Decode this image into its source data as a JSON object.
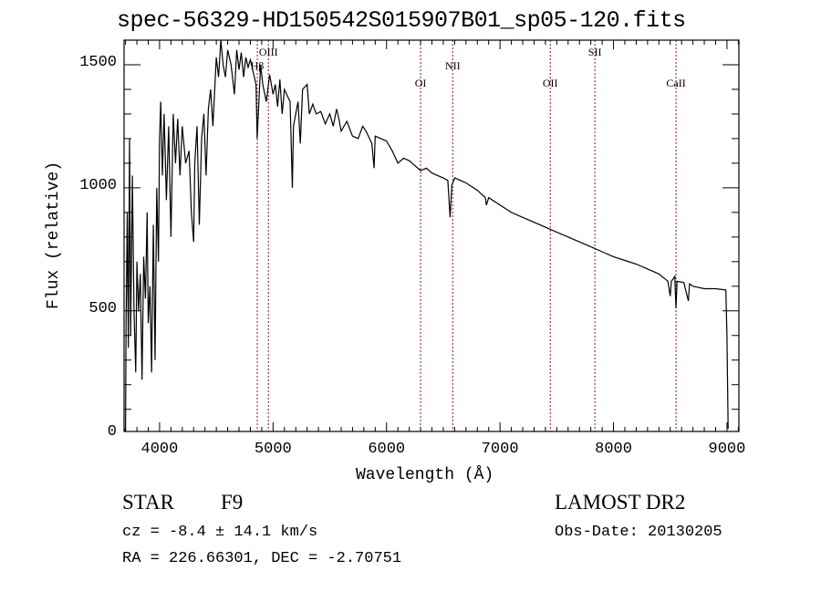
{
  "chart_data": {
    "type": "line",
    "title": "spec-56329-HD150542S015907B01_sp05-120.fits",
    "xlabel": "Wavelength (Å)",
    "ylabel": "Flux (relative)",
    "xlim": [
      3687,
      9105
    ],
    "ylim": [
      10,
      1600
    ],
    "x_ticks": [
      4000,
      5000,
      6000,
      7000,
      8000,
      9000
    ],
    "x_tick_labels": [
      "4000",
      "5000",
      "6000",
      "7000",
      "8000",
      "9000"
    ],
    "y_ticks": [
      0,
      500,
      1000,
      1500
    ],
    "y_tick_labels": [
      "0",
      "500",
      "1000",
      "1500"
    ],
    "grid": false,
    "line_color": "#000000",
    "marker_color": "#8b1a1a",
    "spectral_lines": [
      {
        "label": "Hβ",
        "wavelength": 4861,
        "level": 2
      },
      {
        "label": "OIII",
        "wavelength": 4959,
        "level": 1
      },
      {
        "label": "OI",
        "wavelength": 6300,
        "level": 3
      },
      {
        "label": "NII",
        "wavelength": 6583,
        "level": 2
      },
      {
        "label": "OII",
        "wavelength": 7443,
        "level": 3
      },
      {
        "label": "SII",
        "wavelength": 7836,
        "level": 1
      },
      {
        "label": "CaII",
        "wavelength": 8551,
        "level": 3
      }
    ],
    "series": [
      {
        "name": "spectrum",
        "x": [
          3690,
          3700,
          3705,
          3715,
          3725,
          3735,
          3745,
          3760,
          3775,
          3790,
          3800,
          3815,
          3830,
          3845,
          3860,
          3875,
          3890,
          3900,
          3915,
          3930,
          3945,
          3960,
          3975,
          3990,
          4000,
          4010,
          4025,
          4040,
          4060,
          4080,
          4100,
          4120,
          4140,
          4160,
          4180,
          4200,
          4230,
          4260,
          4280,
          4300,
          4310,
          4330,
          4350,
          4370,
          4390,
          4410,
          4430,
          4450,
          4470,
          4500,
          4520,
          4540,
          4560,
          4580,
          4600,
          4630,
          4660,
          4680,
          4700,
          4720,
          4740,
          4760,
          4780,
          4800,
          4830,
          4850,
          4860,
          4870,
          4890,
          4910,
          4940,
          4970,
          5000,
          5020,
          5040,
          5060,
          5080,
          5100,
          5150,
          5170,
          5180,
          5200,
          5220,
          5240,
          5260,
          5300,
          5320,
          5350,
          5380,
          5420,
          5460,
          5500,
          5530,
          5560,
          5580,
          5600,
          5650,
          5700,
          5750,
          5790,
          5820,
          5870,
          5890,
          5900,
          5950,
          6000,
          6050,
          6100,
          6150,
          6200,
          6250,
          6300,
          6350,
          6400,
          6450,
          6500,
          6540,
          6560,
          6575,
          6600,
          6700,
          6800,
          6870,
          6880,
          6900,
          7000,
          7100,
          7200,
          7300,
          7400,
          7500,
          7600,
          7700,
          7800,
          7900,
          8000,
          8100,
          8200,
          8300,
          8400,
          8480,
          8500,
          8510,
          8540,
          8550,
          8560,
          8620,
          8660,
          8670,
          8700,
          8800,
          8900,
          8990,
          9000,
          9010
        ],
        "y": [
          20,
          0,
          450,
          900,
          350,
          1200,
          400,
          1050,
          500,
          250,
          700,
          500,
          650,
          220,
          720,
          550,
          900,
          450,
          600,
          250,
          850,
          300,
          1000,
          700,
          1200,
          1350,
          1050,
          1300,
          950,
          1250,
          800,
          1300,
          1100,
          1280,
          1050,
          1250,
          1100,
          1150,
          900,
          780,
          1100,
          1250,
          850,
          1200,
          1300,
          1050,
          1320,
          1400,
          1250,
          1530,
          1450,
          1600,
          1500,
          1450,
          1560,
          1500,
          1380,
          1560,
          1480,
          1550,
          1450,
          1530,
          1490,
          1520,
          1460,
          1420,
          1200,
          1300,
          1500,
          1420,
          1350,
          1460,
          1380,
          1420,
          1330,
          1440,
          1300,
          1400,
          1350,
          1000,
          1250,
          1300,
          1350,
          1180,
          1400,
          1420,
          1300,
          1340,
          1300,
          1310,
          1260,
          1300,
          1250,
          1320,
          1280,
          1230,
          1270,
          1210,
          1200,
          1250,
          1230,
          1180,
          1080,
          1210,
          1200,
          1190,
          1150,
          1100,
          1120,
          1110,
          1090,
          1070,
          1080,
          1060,
          1050,
          1040,
          1030,
          880,
          1010,
          1040,
          1020,
          990,
          960,
          930,
          960,
          930,
          900,
          880,
          860,
          840,
          820,
          800,
          780,
          760,
          740,
          720,
          705,
          690,
          670,
          650,
          620,
          560,
          620,
          640,
          510,
          620,
          615,
          540,
          610,
          600,
          590,
          590,
          585,
          400,
          20
        ]
      }
    ]
  },
  "footer": {
    "object_class": "STAR",
    "subclass": "F9",
    "cz": "cz = -8.4 ± 14.1 km/s",
    "coords": "RA = 226.66301, DEC =  -2.70751",
    "survey": "LAMOST DR2",
    "obs_date": "Obs-Date: 20130205"
  }
}
